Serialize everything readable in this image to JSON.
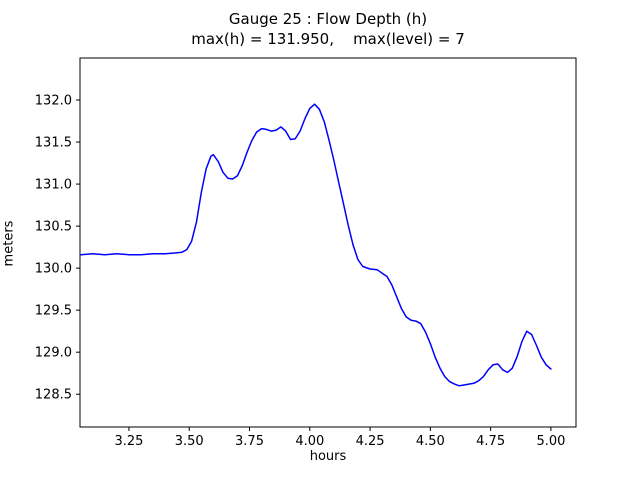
{
  "chart_data": {
    "type": "line",
    "title": "Gauge 25 : Flow Depth (h)",
    "subtitle": "max(h) = 131.950,    max(level) = 7",
    "xlabel": "hours",
    "ylabel": "meters",
    "xlim": [
      3.047,
      5.104
    ],
    "ylim": [
      128.11,
      132.5
    ],
    "xticks": [
      3.25,
      3.5,
      3.75,
      4.0,
      4.25,
      4.5,
      4.75,
      5.0
    ],
    "xtick_labels": [
      "3.25",
      "3.50",
      "3.75",
      "4.00",
      "4.25",
      "4.50",
      "4.75",
      "5.00"
    ],
    "yticks": [
      128.5,
      129.0,
      129.5,
      130.0,
      130.5,
      131.0,
      131.5,
      132.0
    ],
    "ytick_labels": [
      "128.5",
      "129.0",
      "129.5",
      "130.0",
      "130.5",
      "131.0",
      "131.5",
      "132.0"
    ],
    "grid": false,
    "legend": "none",
    "line_color": "#0000ff",
    "series": [
      {
        "name": "flow-depth",
        "points": [
          [
            3.05,
            130.16
          ],
          [
            3.1,
            130.17
          ],
          [
            3.15,
            130.16
          ],
          [
            3.2,
            130.17
          ],
          [
            3.25,
            130.16
          ],
          [
            3.3,
            130.16
          ],
          [
            3.35,
            130.17
          ],
          [
            3.4,
            130.17
          ],
          [
            3.44,
            130.18
          ],
          [
            3.47,
            130.19
          ],
          [
            3.49,
            130.22
          ],
          [
            3.51,
            130.32
          ],
          [
            3.53,
            130.55
          ],
          [
            3.55,
            130.9
          ],
          [
            3.57,
            131.18
          ],
          [
            3.59,
            131.33
          ],
          [
            3.6,
            131.35
          ],
          [
            3.62,
            131.27
          ],
          [
            3.64,
            131.14
          ],
          [
            3.66,
            131.07
          ],
          [
            3.68,
            131.06
          ],
          [
            3.7,
            131.1
          ],
          [
            3.72,
            131.22
          ],
          [
            3.74,
            131.38
          ],
          [
            3.76,
            131.52
          ],
          [
            3.78,
            131.62
          ],
          [
            3.8,
            131.66
          ],
          [
            3.82,
            131.65
          ],
          [
            3.84,
            131.63
          ],
          [
            3.86,
            131.64
          ],
          [
            3.88,
            131.68
          ],
          [
            3.9,
            131.63
          ],
          [
            3.92,
            131.53
          ],
          [
            3.94,
            131.54
          ],
          [
            3.96,
            131.63
          ],
          [
            3.98,
            131.78
          ],
          [
            4.0,
            131.9
          ],
          [
            4.02,
            131.95
          ],
          [
            4.04,
            131.89
          ],
          [
            4.06,
            131.74
          ],
          [
            4.08,
            131.52
          ],
          [
            4.1,
            131.28
          ],
          [
            4.12,
            131.02
          ],
          [
            4.14,
            130.76
          ],
          [
            4.16,
            130.5
          ],
          [
            4.18,
            130.27
          ],
          [
            4.2,
            130.1
          ],
          [
            4.22,
            130.02
          ],
          [
            4.25,
            129.99
          ],
          [
            4.28,
            129.98
          ],
          [
            4.3,
            129.94
          ],
          [
            4.32,
            129.9
          ],
          [
            4.34,
            129.8
          ],
          [
            4.36,
            129.66
          ],
          [
            4.38,
            129.52
          ],
          [
            4.4,
            129.42
          ],
          [
            4.42,
            129.38
          ],
          [
            4.44,
            129.37
          ],
          [
            4.46,
            129.34
          ],
          [
            4.48,
            129.24
          ],
          [
            4.5,
            129.1
          ],
          [
            4.52,
            128.94
          ],
          [
            4.54,
            128.81
          ],
          [
            4.56,
            128.71
          ],
          [
            4.58,
            128.65
          ],
          [
            4.6,
            128.62
          ],
          [
            4.62,
            128.6
          ],
          [
            4.64,
            128.61
          ],
          [
            4.66,
            128.62
          ],
          [
            4.68,
            128.63
          ],
          [
            4.7,
            128.66
          ],
          [
            4.72,
            128.71
          ],
          [
            4.74,
            128.79
          ],
          [
            4.76,
            128.85
          ],
          [
            4.78,
            128.86
          ],
          [
            4.8,
            128.79
          ],
          [
            4.82,
            128.76
          ],
          [
            4.84,
            128.81
          ],
          [
            4.86,
            128.95
          ],
          [
            4.88,
            129.13
          ],
          [
            4.9,
            129.25
          ],
          [
            4.92,
            129.21
          ],
          [
            4.94,
            129.08
          ],
          [
            4.96,
            128.94
          ],
          [
            4.98,
            128.85
          ],
          [
            5.0,
            128.8
          ]
        ]
      }
    ],
    "max_h": "131.950",
    "max_level": "7"
  }
}
